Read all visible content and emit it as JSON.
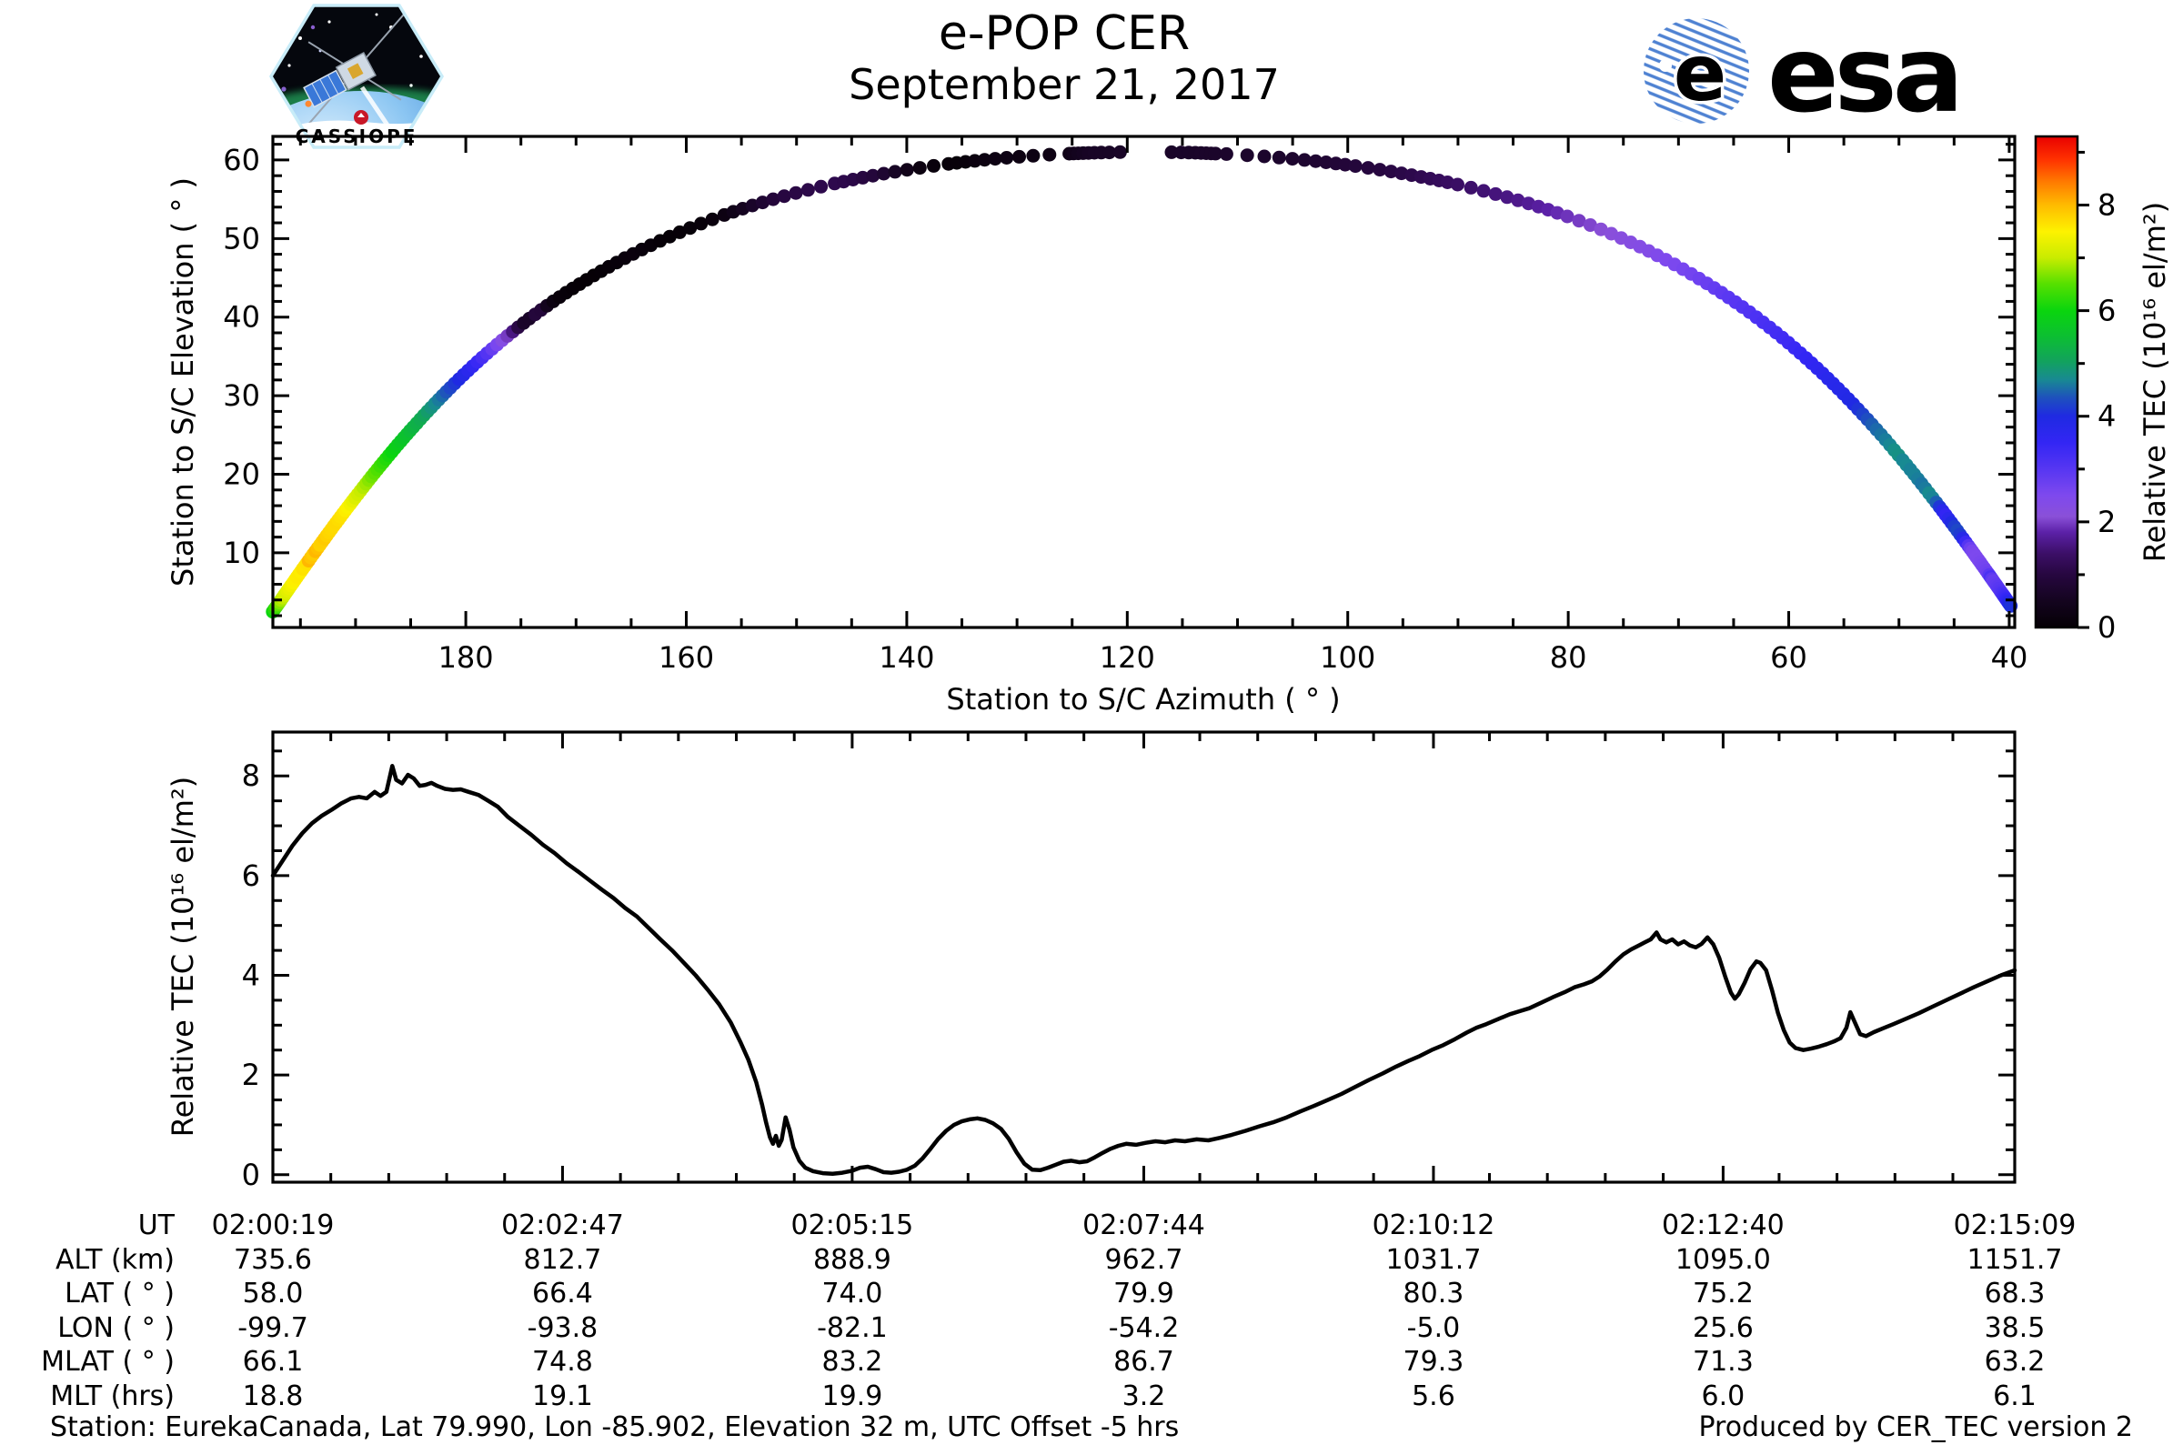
{
  "header": {
    "title": "e-POP CER",
    "date": "September 21, 2017",
    "esa_wordmark": "esa",
    "esa_globe_letter": "e",
    "cassiope_wordmark": "CASSIOPE"
  },
  "footer": {
    "station": "Station: EurekaCanada, Lat 79.990, Lon -85.902, Elevation 32 m, UTC Offset -5 hrs",
    "produced": "Produced by CER_TEC version 2"
  },
  "ephemeris_table": {
    "row_labels": [
      "UT",
      "ALT (km)",
      "LAT ( ° )",
      "LON ( ° )",
      "MLAT ( ° )",
      "MLT (hrs)"
    ],
    "columns": [
      [
        "02:00:19",
        "735.6",
        "58.0",
        "-99.7",
        "66.1",
        "18.8"
      ],
      [
        "02:02:47",
        "812.7",
        "66.4",
        "-93.8",
        "74.8",
        "19.1"
      ],
      [
        "02:05:15",
        "888.9",
        "74.0",
        "-82.1",
        "83.2",
        "19.9"
      ],
      [
        "02:07:44",
        "962.7",
        "79.9",
        "-54.2",
        "86.7",
        "3.2"
      ],
      [
        "02:10:12",
        "1031.7",
        "80.3",
        "-5.0",
        "79.3",
        "5.6"
      ],
      [
        "02:12:40",
        "1095.0",
        "75.2",
        "25.6",
        "71.3",
        "6.0"
      ],
      [
        "02:15:09",
        "1151.7",
        "68.3",
        "38.5",
        "63.2",
        "6.1"
      ]
    ]
  },
  "colormap": {
    "stops": [
      [
        0.0,
        "#050005"
      ],
      [
        0.5,
        "#14041f"
      ],
      [
        1.0,
        "#270740"
      ],
      [
        1.4,
        "#3c0f68"
      ],
      [
        1.8,
        "#5c21a8"
      ],
      [
        2.1,
        "#8a50d8"
      ],
      [
        2.5,
        "#7e49ee"
      ],
      [
        3.0,
        "#5636f2"
      ],
      [
        3.5,
        "#3326f4"
      ],
      [
        4.0,
        "#1f2ae2"
      ],
      [
        4.35,
        "#1e51bd"
      ],
      [
        4.7,
        "#188a92"
      ],
      [
        5.05,
        "#12a35c"
      ],
      [
        5.5,
        "#0cbe33"
      ],
      [
        6.0,
        "#0ad50e"
      ],
      [
        6.5,
        "#55e000"
      ],
      [
        7.0,
        "#c9ec00"
      ],
      [
        7.5,
        "#fdf200"
      ],
      [
        8.0,
        "#ffbb00"
      ],
      [
        8.45,
        "#ff7800"
      ],
      [
        8.85,
        "#ff3300"
      ],
      [
        9.3,
        "#e90000"
      ]
    ]
  },
  "chart_data": [
    {
      "type": "scatter",
      "name": "sky-track-plot",
      "xlabel": "Station to S/C Azimuth ( ° )",
      "ylabel": "Station to S/C Elevation ( ° )",
      "xlim": [
        197.5,
        39.5
      ],
      "x_reversed": true,
      "ylim": [
        0.5,
        63
      ],
      "xticks": [
        180,
        160,
        140,
        120,
        100,
        80,
        60,
        40
      ],
      "xminor_step": 5,
      "yticks": [
        10,
        20,
        30,
        40,
        50,
        60
      ],
      "yminor_step": 2,
      "colorbar": {
        "label": "Relative TEC (10¹⁶ el/m²)",
        "ticks": [
          0,
          2,
          4,
          6,
          8
        ],
        "minor_step": 1,
        "range": [
          0,
          9.3
        ]
      },
      "track": {
        "note": "satellite pass colored by Relative TEC; elevation profile vs seconds after 02:00:19 UT",
        "elevation_profile_t_el": [
          [
            0,
            2.5
          ],
          [
            30,
            5.5
          ],
          [
            60,
            9
          ],
          [
            90,
            13
          ],
          [
            120,
            17
          ],
          [
            150,
            21.5
          ],
          [
            180,
            26
          ],
          [
            210,
            31
          ],
          [
            240,
            36.5
          ],
          [
            270,
            42
          ],
          [
            300,
            47.5
          ],
          [
            330,
            53
          ],
          [
            360,
            57
          ],
          [
            390,
            59.5
          ],
          [
            420,
            60.8
          ],
          [
            445,
            61
          ],
          [
            470,
            60.8
          ],
          [
            500,
            59.3
          ],
          [
            530,
            57
          ],
          [
            560,
            53
          ],
          [
            590,
            47.5
          ],
          [
            620,
            41.5
          ],
          [
            650,
            35
          ],
          [
            680,
            28.5
          ],
          [
            710,
            22
          ],
          [
            740,
            16
          ],
          [
            770,
            11
          ],
          [
            800,
            7.5
          ],
          [
            830,
            5
          ],
          [
            860,
            3.8
          ],
          [
            890,
            3.2
          ]
        ],
        "azimuth_model": {
          "apex_az": 118.5,
          "az_half_span": 79.0,
          "psi_max_deg": 88.6,
          "d": 0.554
        },
        "marker_radius_px": 7.5
      }
    },
    {
      "type": "line",
      "name": "tec-timeseries",
      "ylabel": "Relative TEC (10¹⁶ el/m²)",
      "xlim_seconds": [
        0,
        890
      ],
      "ylim": [
        -0.15,
        8.88
      ],
      "yticks": [
        0,
        2,
        4,
        6,
        8
      ],
      "yminor_step": 0.5,
      "xticks_seconds": [
        0,
        148,
        296,
        445,
        593,
        741,
        890
      ],
      "xminor_divisions": 5,
      "series_t_tec": [
        [
          0,
          6.0
        ],
        [
          5,
          6.3
        ],
        [
          10,
          6.6
        ],
        [
          15,
          6.85
        ],
        [
          20,
          7.05
        ],
        [
          25,
          7.2
        ],
        [
          30,
          7.32
        ],
        [
          35,
          7.45
        ],
        [
          40,
          7.55
        ],
        [
          44,
          7.58
        ],
        [
          48,
          7.55
        ],
        [
          52,
          7.68
        ],
        [
          55,
          7.6
        ],
        [
          58,
          7.68
        ],
        [
          61,
          8.2
        ],
        [
          63,
          7.92
        ],
        [
          66,
          7.85
        ],
        [
          69,
          8.02
        ],
        [
          72,
          7.95
        ],
        [
          75,
          7.8
        ],
        [
          78,
          7.82
        ],
        [
          81,
          7.86
        ],
        [
          84,
          7.8
        ],
        [
          88,
          7.74
        ],
        [
          92,
          7.72
        ],
        [
          96,
          7.73
        ],
        [
          100,
          7.68
        ],
        [
          105,
          7.62
        ],
        [
          110,
          7.5
        ],
        [
          115,
          7.38
        ],
        [
          120,
          7.18
        ],
        [
          126,
          7.0
        ],
        [
          132,
          6.82
        ],
        [
          138,
          6.62
        ],
        [
          144,
          6.45
        ],
        [
          150,
          6.25
        ],
        [
          156,
          6.08
        ],
        [
          162,
          5.9
        ],
        [
          168,
          5.72
        ],
        [
          174,
          5.55
        ],
        [
          180,
          5.35
        ],
        [
          186,
          5.18
        ],
        [
          192,
          4.95
        ],
        [
          198,
          4.72
        ],
        [
          204,
          4.5
        ],
        [
          210,
          4.25
        ],
        [
          216,
          4.0
        ],
        [
          222,
          3.72
        ],
        [
          228,
          3.42
        ],
        [
          234,
          3.05
        ],
        [
          239,
          2.65
        ],
        [
          243,
          2.3
        ],
        [
          247,
          1.85
        ],
        [
          250,
          1.4
        ],
        [
          252,
          1.05
        ],
        [
          254,
          0.75
        ],
        [
          255.5,
          0.62
        ],
        [
          257,
          0.78
        ],
        [
          258.5,
          0.58
        ],
        [
          260,
          0.7
        ],
        [
          262,
          1.15
        ],
        [
          264,
          0.9
        ],
        [
          266,
          0.55
        ],
        [
          269,
          0.28
        ],
        [
          272,
          0.14
        ],
        [
          276,
          0.07
        ],
        [
          281,
          0.03
        ],
        [
          286,
          0.02
        ],
        [
          291,
          0.04
        ],
        [
          296,
          0.08
        ],
        [
          300,
          0.14
        ],
        [
          304,
          0.16
        ],
        [
          308,
          0.11
        ],
        [
          312,
          0.05
        ],
        [
          316,
          0.04
        ],
        [
          320,
          0.06
        ],
        [
          324,
          0.1
        ],
        [
          328,
          0.18
        ],
        [
          332,
          0.33
        ],
        [
          336,
          0.52
        ],
        [
          340,
          0.72
        ],
        [
          344,
          0.88
        ],
        [
          348,
          1.0
        ],
        [
          352,
          1.07
        ],
        [
          356,
          1.11
        ],
        [
          360,
          1.13
        ],
        [
          364,
          1.1
        ],
        [
          368,
          1.03
        ],
        [
          372,
          0.92
        ],
        [
          376,
          0.72
        ],
        [
          380,
          0.45
        ],
        [
          384,
          0.22
        ],
        [
          388,
          0.1
        ],
        [
          392,
          0.09
        ],
        [
          396,
          0.14
        ],
        [
          400,
          0.2
        ],
        [
          404,
          0.26
        ],
        [
          408,
          0.28
        ],
        [
          412,
          0.25
        ],
        [
          416,
          0.27
        ],
        [
          420,
          0.35
        ],
        [
          424,
          0.44
        ],
        [
          428,
          0.52
        ],
        [
          432,
          0.58
        ],
        [
          436,
          0.62
        ],
        [
          441,
          0.6
        ],
        [
          446,
          0.64
        ],
        [
          451,
          0.67
        ],
        [
          456,
          0.65
        ],
        [
          461,
          0.69
        ],
        [
          466,
          0.67
        ],
        [
          472,
          0.71
        ],
        [
          478,
          0.69
        ],
        [
          484,
          0.74
        ],
        [
          490,
          0.8
        ],
        [
          497,
          0.88
        ],
        [
          504,
          0.97
        ],
        [
          511,
          1.05
        ],
        [
          518,
          1.15
        ],
        [
          525,
          1.27
        ],
        [
          532,
          1.38
        ],
        [
          539,
          1.5
        ],
        [
          546,
          1.62
        ],
        [
          553,
          1.76
        ],
        [
          560,
          1.9
        ],
        [
          567,
          2.03
        ],
        [
          574,
          2.17
        ],
        [
          580,
          2.28
        ],
        [
          586,
          2.38
        ],
        [
          592,
          2.5
        ],
        [
          598,
          2.6
        ],
        [
          604,
          2.72
        ],
        [
          610,
          2.85
        ],
        [
          615,
          2.95
        ],
        [
          620,
          3.02
        ],
        [
          626,
          3.12
        ],
        [
          632,
          3.22
        ],
        [
          637,
          3.28
        ],
        [
          642,
          3.34
        ],
        [
          648,
          3.45
        ],
        [
          654,
          3.56
        ],
        [
          660,
          3.66
        ],
        [
          665,
          3.76
        ],
        [
          670,
          3.82
        ],
        [
          674,
          3.88
        ],
        [
          678,
          3.98
        ],
        [
          682,
          4.12
        ],
        [
          686,
          4.28
        ],
        [
          690,
          4.42
        ],
        [
          694,
          4.52
        ],
        [
          698,
          4.6
        ],
        [
          701,
          4.66
        ],
        [
          704,
          4.72
        ],
        [
          707,
          4.86
        ],
        [
          709,
          4.72
        ],
        [
          712,
          4.66
        ],
        [
          715,
          4.72
        ],
        [
          718,
          4.62
        ],
        [
          721,
          4.68
        ],
        [
          724,
          4.6
        ],
        [
          727,
          4.56
        ],
        [
          730,
          4.63
        ],
        [
          733,
          4.76
        ],
        [
          736,
          4.62
        ],
        [
          739,
          4.35
        ],
        [
          742,
          3.98
        ],
        [
          745,
          3.65
        ],
        [
          747,
          3.53
        ],
        [
          749,
          3.62
        ],
        [
          752,
          3.85
        ],
        [
          755,
          4.12
        ],
        [
          758,
          4.28
        ],
        [
          760,
          4.25
        ],
        [
          763,
          4.1
        ],
        [
          766,
          3.7
        ],
        [
          769,
          3.25
        ],
        [
          772,
          2.9
        ],
        [
          775,
          2.65
        ],
        [
          778,
          2.54
        ],
        [
          782,
          2.5
        ],
        [
          786,
          2.53
        ],
        [
          790,
          2.57
        ],
        [
          794,
          2.62
        ],
        [
          798,
          2.68
        ],
        [
          801,
          2.74
        ],
        [
          804,
          2.95
        ],
        [
          806,
          3.26
        ],
        [
          808,
          3.08
        ],
        [
          811,
          2.82
        ],
        [
          814,
          2.78
        ],
        [
          818,
          2.86
        ],
        [
          823,
          2.94
        ],
        [
          828,
          3.02
        ],
        [
          834,
          3.12
        ],
        [
          841,
          3.24
        ],
        [
          848,
          3.37
        ],
        [
          855,
          3.5
        ],
        [
          862,
          3.63
        ],
        [
          869,
          3.76
        ],
        [
          876,
          3.88
        ],
        [
          883,
          4.0
        ],
        [
          890,
          4.1
        ]
      ]
    }
  ]
}
